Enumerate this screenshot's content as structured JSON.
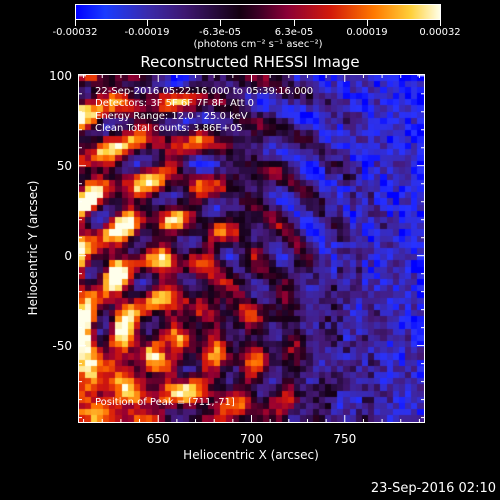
{
  "colorbar": {
    "tick_labels": [
      "-0.00032",
      "-0.00019",
      "-6.3e-05",
      "6.3e-05",
      "0.00019",
      "0.00032"
    ],
    "units": "(photons cm⁻² s⁻¹ asec⁻²)",
    "range": [
      -0.00032,
      0.00032
    ]
  },
  "title": "Reconstructed RHESSI Image",
  "info": {
    "time_range": "22-Sep-2016 05:22:16.000 to 05:39:16.000",
    "detectors": "Detectors: 3F 5F 6F 7F 8F, Att 0",
    "energy": "Energy Range: 12.0 - 25.0 keV",
    "clean": "Clean     Total counts: 3.86E+05",
    "peak": "Position of Peak = [711,-71]"
  },
  "chart_data": {
    "type": "heatmap",
    "title": "Reconstructed RHESSI Image",
    "xlabel": "Heliocentric X (arcsec)",
    "ylabel": "Heliocentric Y (arcsec)",
    "xlim": [
      607,
      793
    ],
    "ylim": [
      -93,
      101
    ],
    "x_ticks": [
      650,
      700,
      750
    ],
    "y_ticks": [
      100,
      50,
      0,
      -50
    ],
    "x_tick_labels": [
      "650",
      "700",
      "750"
    ],
    "y_tick_labels": [
      "100",
      "50",
      "0",
      "-50"
    ],
    "color_range": [
      -0.00032,
      0.00032
    ],
    "colormap": "blue-black-red-yellow-white",
    "peak_position": [
      711,
      -71
    ],
    "grid_cols": 56,
    "grid_rows": 56
  },
  "timestamp": "23-Sep-2016 02:10"
}
